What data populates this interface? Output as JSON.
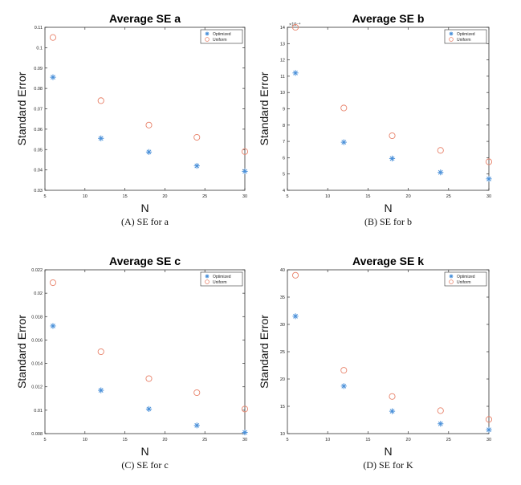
{
  "colors": {
    "optimized": "#4a90d9",
    "uniform": "#e8826a",
    "axis": "#333333"
  },
  "chart_data": [
    {
      "type": "scatter",
      "title": "Average SE a",
      "xlabel": "N",
      "ylabel": "Standard Error",
      "caption": "(A) SE for a",
      "xlim": [
        5,
        30
      ],
      "ylim": [
        0.03,
        0.11
      ],
      "xticks": [
        5,
        10,
        15,
        20,
        25,
        30
      ],
      "xtick_labels": [
        "5",
        "10",
        "15",
        "20",
        "25",
        "30"
      ],
      "yticks": [
        0.03,
        0.04,
        0.05,
        0.06,
        0.07,
        0.08,
        0.09,
        0.1,
        0.11
      ],
      "ytick_labels": [
        "0.03",
        "0.04",
        "0.05",
        "0.06",
        "0.07",
        "0.08",
        "0.09",
        "0.1",
        "0.11"
      ],
      "exponent_label": "",
      "grid": false,
      "legend": "top-right",
      "x": [
        6,
        12,
        18,
        24,
        30
      ],
      "series": [
        {
          "name": "Optimized",
          "marker": "asterisk",
          "values": [
            0.0855,
            0.0555,
            0.0488,
            0.042,
            0.0393
          ]
        },
        {
          "name": "Uniform",
          "marker": "circle",
          "values": [
            0.105,
            0.074,
            0.062,
            0.056,
            0.049
          ]
        }
      ]
    },
    {
      "type": "scatter",
      "title": "Average SE b",
      "xlabel": "N",
      "ylabel": "Standard Error",
      "caption": "(B) SE for b",
      "xlim": [
        5,
        30
      ],
      "ylim": [
        4,
        14
      ],
      "xticks": [
        5,
        10,
        15,
        20,
        25,
        30
      ],
      "xtick_labels": [
        "5",
        "10",
        "15",
        "20",
        "25",
        "30"
      ],
      "yticks": [
        4,
        5,
        6,
        7,
        8,
        9,
        10,
        11,
        12,
        13,
        14
      ],
      "ytick_labels": [
        "4",
        "5",
        "6",
        "7",
        "8",
        "9",
        "10",
        "11",
        "12",
        "13",
        "14"
      ],
      "exponent_label": "×10⁻⁴",
      "grid": false,
      "legend": "top-right",
      "x": [
        6,
        12,
        18,
        24,
        30
      ],
      "series": [
        {
          "name": "Optimized",
          "marker": "asterisk",
          "values": [
            11.2,
            6.95,
            5.95,
            5.1,
            4.7
          ]
        },
        {
          "name": "Uniform",
          "marker": "circle",
          "values": [
            14.0,
            9.05,
            7.35,
            6.45,
            5.75
          ]
        }
      ]
    },
    {
      "type": "scatter",
      "title": "Average SE c",
      "xlabel": "N",
      "ylabel": "Standard Error",
      "caption": "(C) SE for c",
      "xlim": [
        5,
        30
      ],
      "ylim": [
        0.008,
        0.022
      ],
      "xticks": [
        5,
        10,
        15,
        20,
        25,
        30
      ],
      "xtick_labels": [
        "5",
        "10",
        "15",
        "20",
        "25",
        "30"
      ],
      "yticks": [
        0.008,
        0.01,
        0.012,
        0.014,
        0.016,
        0.018,
        0.02,
        0.022
      ],
      "ytick_labels": [
        "0.008",
        "0.01",
        "0.012",
        "0.014",
        "0.016",
        "0.018",
        "0.02",
        "0.022"
      ],
      "exponent_label": "",
      "grid": false,
      "legend": "top-right",
      "x": [
        6,
        12,
        18,
        24,
        30
      ],
      "series": [
        {
          "name": "Optimized",
          "marker": "asterisk",
          "values": [
            0.0172,
            0.0117,
            0.0101,
            0.0087,
            0.0081
          ]
        },
        {
          "name": "Uniform",
          "marker": "circle",
          "values": [
            0.0209,
            0.015,
            0.0127,
            0.0115,
            0.0101
          ]
        }
      ]
    },
    {
      "type": "scatter",
      "title": "Average SE k",
      "xlabel": "N",
      "ylabel": "Standard Error",
      "caption": "(D) SE for K",
      "xlim": [
        5,
        30
      ],
      "ylim": [
        10,
        40
      ],
      "xticks": [
        5,
        10,
        15,
        20,
        25,
        30
      ],
      "xtick_labels": [
        "5",
        "10",
        "15",
        "20",
        "25",
        "30"
      ],
      "yticks": [
        10,
        15,
        20,
        25,
        30,
        35,
        40
      ],
      "ytick_labels": [
        "10",
        "15",
        "20",
        "25",
        "30",
        "35",
        "40"
      ],
      "exponent_label": "",
      "grid": false,
      "legend": "top-right",
      "x": [
        6,
        12,
        18,
        24,
        30
      ],
      "series": [
        {
          "name": "Optimized",
          "marker": "asterisk",
          "values": [
            31.5,
            18.7,
            14.1,
            11.8,
            10.7
          ]
        },
        {
          "name": "Uniform",
          "marker": "circle",
          "values": [
            39.0,
            21.6,
            16.8,
            14.2,
            12.6
          ]
        }
      ]
    }
  ]
}
